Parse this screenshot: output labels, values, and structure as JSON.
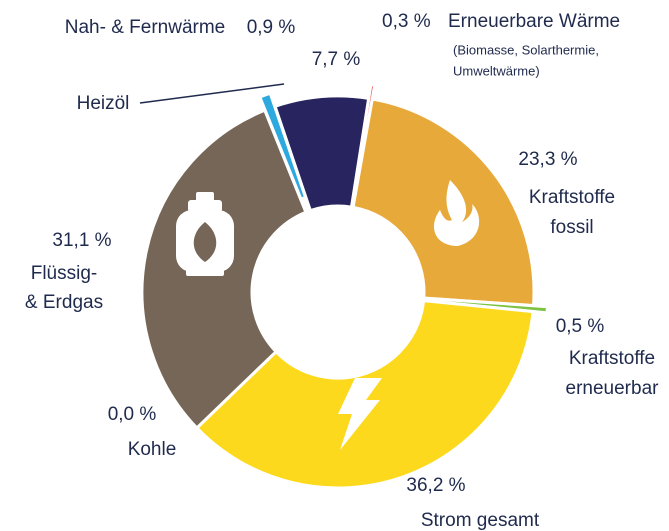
{
  "chart_data": {
    "type": "donut",
    "categories": [
      "Erneuerbare Wärme",
      "Kraftstoffe\nfossil",
      "Kraftstoffe\nerneuerbar",
      "Strom gesamt",
      "Kohle",
      "Flüssig-\n& Erdgas",
      "Nah- & Fernwärme",
      "Heizöl"
    ],
    "values": [
      0.3,
      23.3,
      0.5,
      36.2,
      0.0,
      31.1,
      0.9,
      7.7
    ],
    "value_labels": [
      "0,3 %",
      "23,3 %",
      "0,5 %",
      "36,2 %",
      "0,0 %",
      "31,1 %",
      "0,9 %",
      "7,7 %"
    ],
    "colors": [
      "#e63a30",
      "#e8a93b",
      "#7dc242",
      "#fcd91c",
      "#2a2a2a",
      "#756657",
      "#2ea9df",
      "#27245f"
    ],
    "exploded": [
      true,
      false,
      true,
      false,
      false,
      false,
      true,
      false
    ],
    "annotations": [
      "(Biomasse, Solarthermie,",
      "Umweltwärme)"
    ]
  }
}
